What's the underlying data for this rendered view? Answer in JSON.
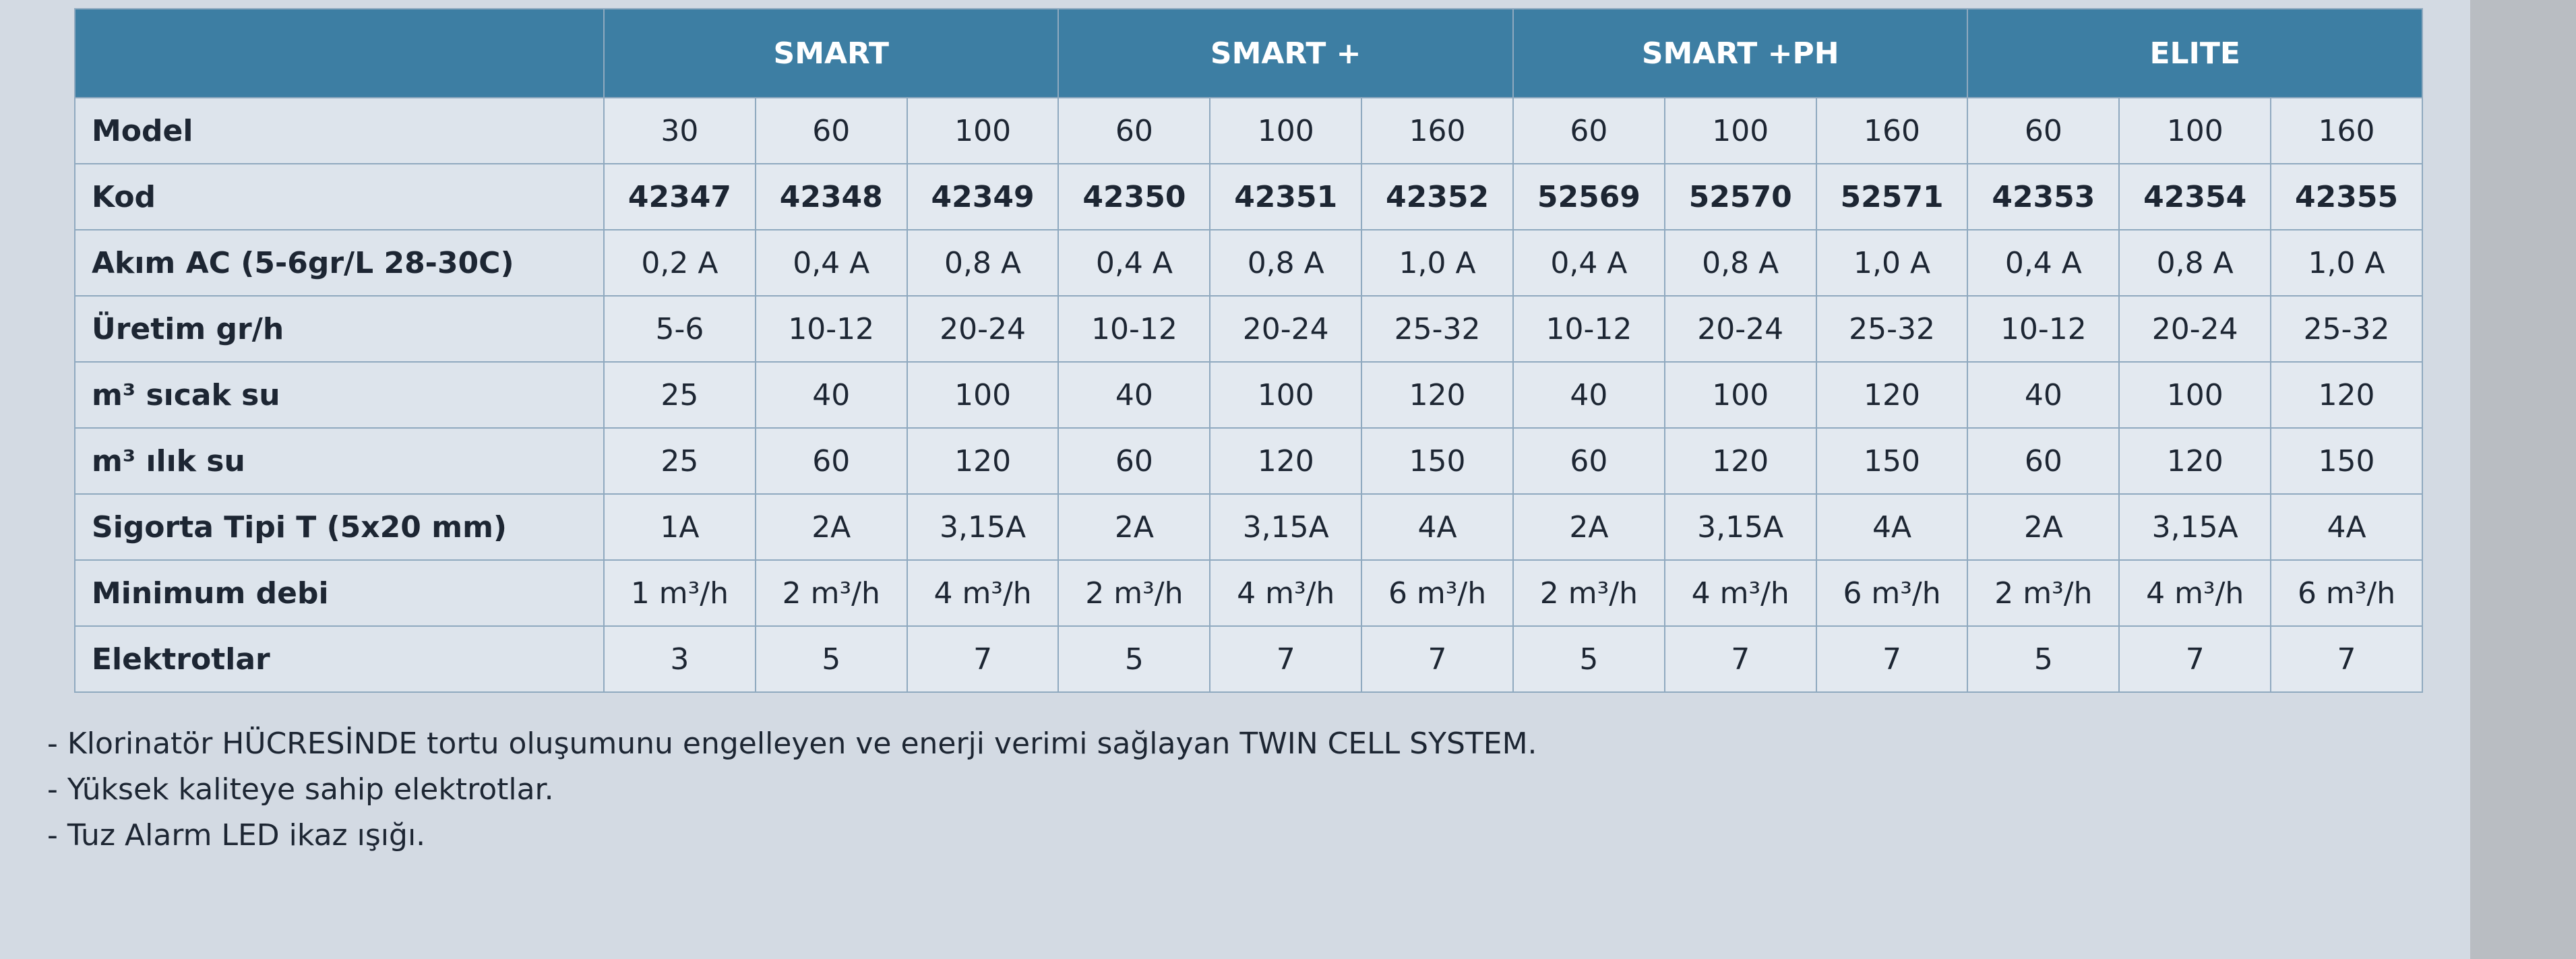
{
  "table": {
    "groups": [
      "SMART",
      "SMART +",
      "SMART +PH",
      "ELITE"
    ],
    "rows": [
      {
        "label": "Model",
        "cells": [
          "30",
          "60",
          "100",
          "60",
          "100",
          "160",
          "60",
          "100",
          "160",
          "60",
          "100",
          "160"
        ]
      },
      {
        "label": "Kod",
        "cells": [
          "42347",
          "42348",
          "42349",
          "42350",
          "42351",
          "42352",
          "52569",
          "52570",
          "52571",
          "42353",
          "42354",
          "42355"
        ]
      },
      {
        "label": "Akım AC (5-6gr/L 28-30C)",
        "cells": [
          "0,2 A",
          "0,4 A",
          "0,8 A",
          "0,4 A",
          "0,8 A",
          "1,0 A",
          "0,4 A",
          "0,8 A",
          "1,0 A",
          "0,4 A",
          "0,8 A",
          "1,0 A"
        ]
      },
      {
        "label": "Üretim gr/h",
        "cells": [
          "5-6",
          "10-12",
          "20-24",
          "10-12",
          "20-24",
          "25-32",
          "10-12",
          "20-24",
          "25-32",
          "10-12",
          "20-24",
          "25-32"
        ]
      },
      {
        "label": "m³ sıcak su",
        "cells": [
          "25",
          "40",
          "100",
          "40",
          "100",
          "120",
          "40",
          "100",
          "120",
          "40",
          "100",
          "120"
        ]
      },
      {
        "label": "m³ ılık su",
        "cells": [
          "25",
          "60",
          "120",
          "60",
          "120",
          "150",
          "60",
          "120",
          "150",
          "60",
          "120",
          "150"
        ]
      },
      {
        "label": "Sigorta Tipi T (5x20 mm)",
        "cells": [
          "1A",
          "2A",
          "3,15A",
          "2A",
          "3,15A",
          "4A",
          "2A",
          "3,15A",
          "4A",
          "2A",
          "3,15A",
          "4A"
        ]
      },
      {
        "label": "Minimum debi",
        "cells": [
          "1 m³/h",
          "2 m³/h",
          "4 m³/h",
          "2 m³/h",
          "4 m³/h",
          "6 m³/h",
          "2 m³/h",
          "4 m³/h",
          "6 m³/h",
          "2 m³/h",
          "4 m³/h",
          "6 m³/h"
        ]
      },
      {
        "label": "Elektrotlar",
        "cells": [
          "3",
          "5",
          "7",
          "5",
          "7",
          "7",
          "5",
          "7",
          "7",
          "5",
          "7",
          "7"
        ]
      }
    ]
  },
  "notes": [
    "- Klorinatör HÜCRESİNDE tortu oluşumunu engelleyen ve enerji verimi sağlayan TWIN CELL SYSTEM.",
    "- Yüksek kaliteye sahip elektrotlar.",
    "- Tuz Alarm LED ikaz ışığı."
  ]
}
